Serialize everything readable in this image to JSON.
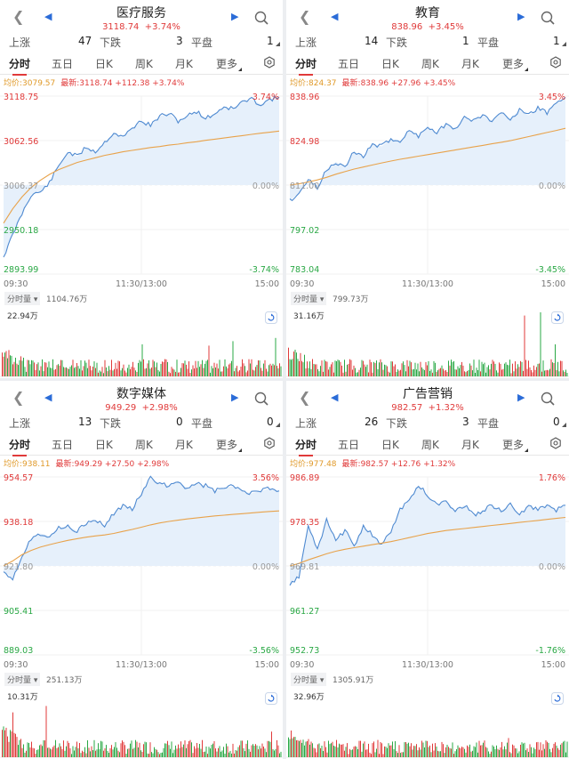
{
  "panels": [
    {
      "name": "医疗服务",
      "sub": "3118.74  +3.74%",
      "up_label": "上涨",
      "up": "47",
      "down_label": "下跌",
      "down": "3",
      "flat_label": "平盘",
      "flat": "1",
      "avg_text": "均价:3079.57",
      "last_text": "最新:3118.74 +112.38 +3.74%",
      "y_labels": [
        "3118.75",
        "3062.56",
        "3006.37",
        "2950.18",
        "2893.99"
      ],
      "pct_labels": [
        "3.74%",
        "0.00%",
        "-3.74%"
      ],
      "x_labels": [
        "09:30",
        "11:30/13:00",
        "15:00"
      ],
      "vol_tag": "分时量",
      "vol_value": "1104.76万",
      "vol_max": "22.94万",
      "price_path": [
        -3.0,
        -2.1,
        -1.2,
        -0.4,
        -0.3,
        0.1,
        0.8,
        1.4,
        1.2,
        1.6,
        1.4,
        1.8,
        2.2,
        2.0,
        2.4,
        2.7,
        2.5,
        2.9,
        3.0,
        2.7,
        2.9,
        3.1,
        2.8,
        3.0,
        3.3,
        3.2,
        3.5,
        3.6,
        3.4,
        3.6,
        3.7
      ],
      "avg_path": [
        -1.6,
        -1.0,
        -0.5,
        -0.1,
        0.2,
        0.45,
        0.65,
        0.8,
        0.95,
        1.05,
        1.15,
        1.25,
        1.32,
        1.4,
        1.46,
        1.52,
        1.58,
        1.62,
        1.68,
        1.72,
        1.78,
        1.82,
        1.88,
        1.93,
        1.98,
        2.03,
        2.08,
        2.13,
        2.18,
        2.22,
        2.27
      ],
      "vol_seed": 11,
      "vol_spikes": [
        [
          0,
          1.0
        ],
        [
          78,
          0.35
        ],
        [
          120,
          0.45
        ],
        [
          160,
          0.5
        ],
        [
          235,
          0.48
        ],
        [
          262,
          0.55
        ],
        [
          300,
          0.95
        ],
        [
          310,
          0.6
        ]
      ]
    },
    {
      "name": "教育",
      "sub": "838.96  +3.45%",
      "up_label": "上涨",
      "up": "14",
      "down_label": "下跌",
      "down": "1",
      "flat_label": "平盘",
      "flat": "1",
      "avg_text": "均价:824.37",
      "last_text": "最新:838.96 +27.96 +3.45%",
      "y_labels": [
        "838.96",
        "824.98",
        "811.00",
        "797.02",
        "783.04"
      ],
      "pct_labels": [
        "3.45%",
        "0.00%",
        "-3.45%"
      ],
      "x_labels": [
        "09:30",
        "11:30/13:00",
        "15:00"
      ],
      "vol_tag": "分时量",
      "vol_value": "799.73万",
      "vol_max": "31.16万",
      "price_path": [
        -0.6,
        -0.3,
        0.2,
        -0.1,
        0.6,
        0.9,
        0.7,
        1.3,
        1.1,
        1.6,
        1.5,
        1.8,
        1.7,
        2.1,
        1.9,
        2.3,
        2.0,
        2.4,
        2.2,
        2.6,
        2.5,
        2.7,
        2.5,
        2.8,
        2.6,
        2.9,
        2.7,
        3.0,
        2.8,
        3.2,
        3.4
      ],
      "avg_path": [
        0.0,
        0.05,
        0.12,
        0.2,
        0.3,
        0.42,
        0.52,
        0.62,
        0.7,
        0.78,
        0.86,
        0.93,
        1.0,
        1.06,
        1.12,
        1.18,
        1.24,
        1.3,
        1.36,
        1.42,
        1.48,
        1.54,
        1.6,
        1.66,
        1.72,
        1.8,
        1.88,
        1.96,
        2.04,
        2.12,
        2.2
      ],
      "vol_seed": 23,
      "vol_spikes": [
        [
          0,
          1.0
        ],
        [
          30,
          0.55
        ],
        [
          150,
          0.3
        ],
        [
          240,
          0.4
        ],
        [
          268,
          0.95
        ],
        [
          286,
          1.0
        ],
        [
          302,
          0.5
        ]
      ]
    },
    {
      "name": "数字媒体",
      "sub": "949.29  +2.98%",
      "up_label": "上涨",
      "up": "13",
      "down_label": "下跌",
      "down": "0",
      "flat_label": "平盘",
      "flat": "0",
      "avg_text": "均价:938.11",
      "last_text": "最新:949.29 +27.50 +2.98%",
      "y_labels": [
        "954.57",
        "938.18",
        "921.80",
        "905.41",
        "889.03"
      ],
      "pct_labels": [
        "3.56%",
        "0.00%",
        "-3.56%"
      ],
      "x_labels": [
        "09:30",
        "11:30/13:00",
        "15:00"
      ],
      "vol_tag": "分时量",
      "vol_value": "251.13万",
      "vol_max": "10.31万",
      "price_path": [
        -0.2,
        -0.5,
        0.4,
        1.1,
        1.3,
        1.2,
        1.5,
        1.6,
        1.4,
        1.7,
        1.8,
        1.6,
        2.1,
        2.4,
        2.3,
        2.9,
        3.5,
        3.3,
        3.2,
        3.4,
        3.1,
        3.3,
        3.2,
        3.0,
        3.1,
        3.2,
        3.0,
        2.9,
        3.0,
        3.1,
        3.0
      ],
      "avg_path": [
        0.0,
        0.2,
        0.45,
        0.62,
        0.75,
        0.85,
        0.94,
        1.02,
        1.09,
        1.15,
        1.2,
        1.24,
        1.3,
        1.38,
        1.46,
        1.55,
        1.64,
        1.72,
        1.78,
        1.83,
        1.88,
        1.92,
        1.96,
        2.0,
        2.03,
        2.06,
        2.09,
        2.12,
        2.15,
        2.18,
        2.2
      ],
      "vol_seed": 37,
      "vol_spikes": [
        [
          0,
          0.6
        ],
        [
          14,
          0.7
        ],
        [
          48,
          1.0
        ],
        [
          52,
          0.8
        ],
        [
          60,
          0.4
        ],
        [
          150,
          0.25
        ],
        [
          200,
          0.2
        ],
        [
          305,
          0.4
        ]
      ]
    },
    {
      "name": "广告营销",
      "sub": "982.57  +1.32%",
      "up_label": "上涨",
      "up": "26",
      "down_label": "下跌",
      "down": "3",
      "flat_label": "平盘",
      "flat": "0",
      "avg_text": "均价:977.48",
      "last_text": "最新:982.57 +12.76 +1.32%",
      "y_labels": [
        "986.89",
        "978.35",
        "969.81",
        "961.27",
        "952.73"
      ],
      "pct_labels": [
        "1.76%",
        "0.00%",
        "-1.76%"
      ],
      "x_labels": [
        "09:30",
        "11:30/13:00",
        "15:00"
      ],
      "vol_tag": "分时量",
      "vol_value": "1305.91万",
      "vol_max": "32.96万",
      "price_path": [
        -0.4,
        -0.2,
        0.8,
        0.3,
        0.9,
        0.5,
        0.7,
        0.4,
        0.8,
        0.6,
        0.4,
        0.7,
        1.1,
        1.3,
        1.6,
        1.4,
        1.2,
        1.3,
        1.1,
        1.2,
        1.0,
        1.1,
        1.2,
        1.1,
        1.2,
        1.0,
        1.2,
        1.1,
        1.2,
        1.1,
        1.2
      ],
      "avg_path": [
        0.0,
        0.05,
        0.12,
        0.18,
        0.24,
        0.29,
        0.33,
        0.36,
        0.39,
        0.42,
        0.45,
        0.48,
        0.52,
        0.56,
        0.6,
        0.64,
        0.67,
        0.7,
        0.72,
        0.74,
        0.76,
        0.78,
        0.8,
        0.82,
        0.84,
        0.86,
        0.88,
        0.9,
        0.92,
        0.94,
        0.96
      ],
      "vol_seed": 53,
      "vol_spikes": [
        [
          0,
          1.0
        ],
        [
          6,
          0.8
        ],
        [
          12,
          0.6
        ],
        [
          150,
          0.3
        ],
        [
          250,
          0.3
        ],
        [
          300,
          0.55
        ],
        [
          312,
          0.5
        ]
      ]
    }
  ],
  "tabs": [
    "分时",
    "五日",
    "日K",
    "周K",
    "月K",
    "更多"
  ],
  "colors": {
    "up": "#e03a3a",
    "down": "#2aa845",
    "price": "#4f8ad1",
    "avg": "#e8a24a",
    "fill": "#e6f0fb",
    "accent": "#2b6cd8"
  }
}
